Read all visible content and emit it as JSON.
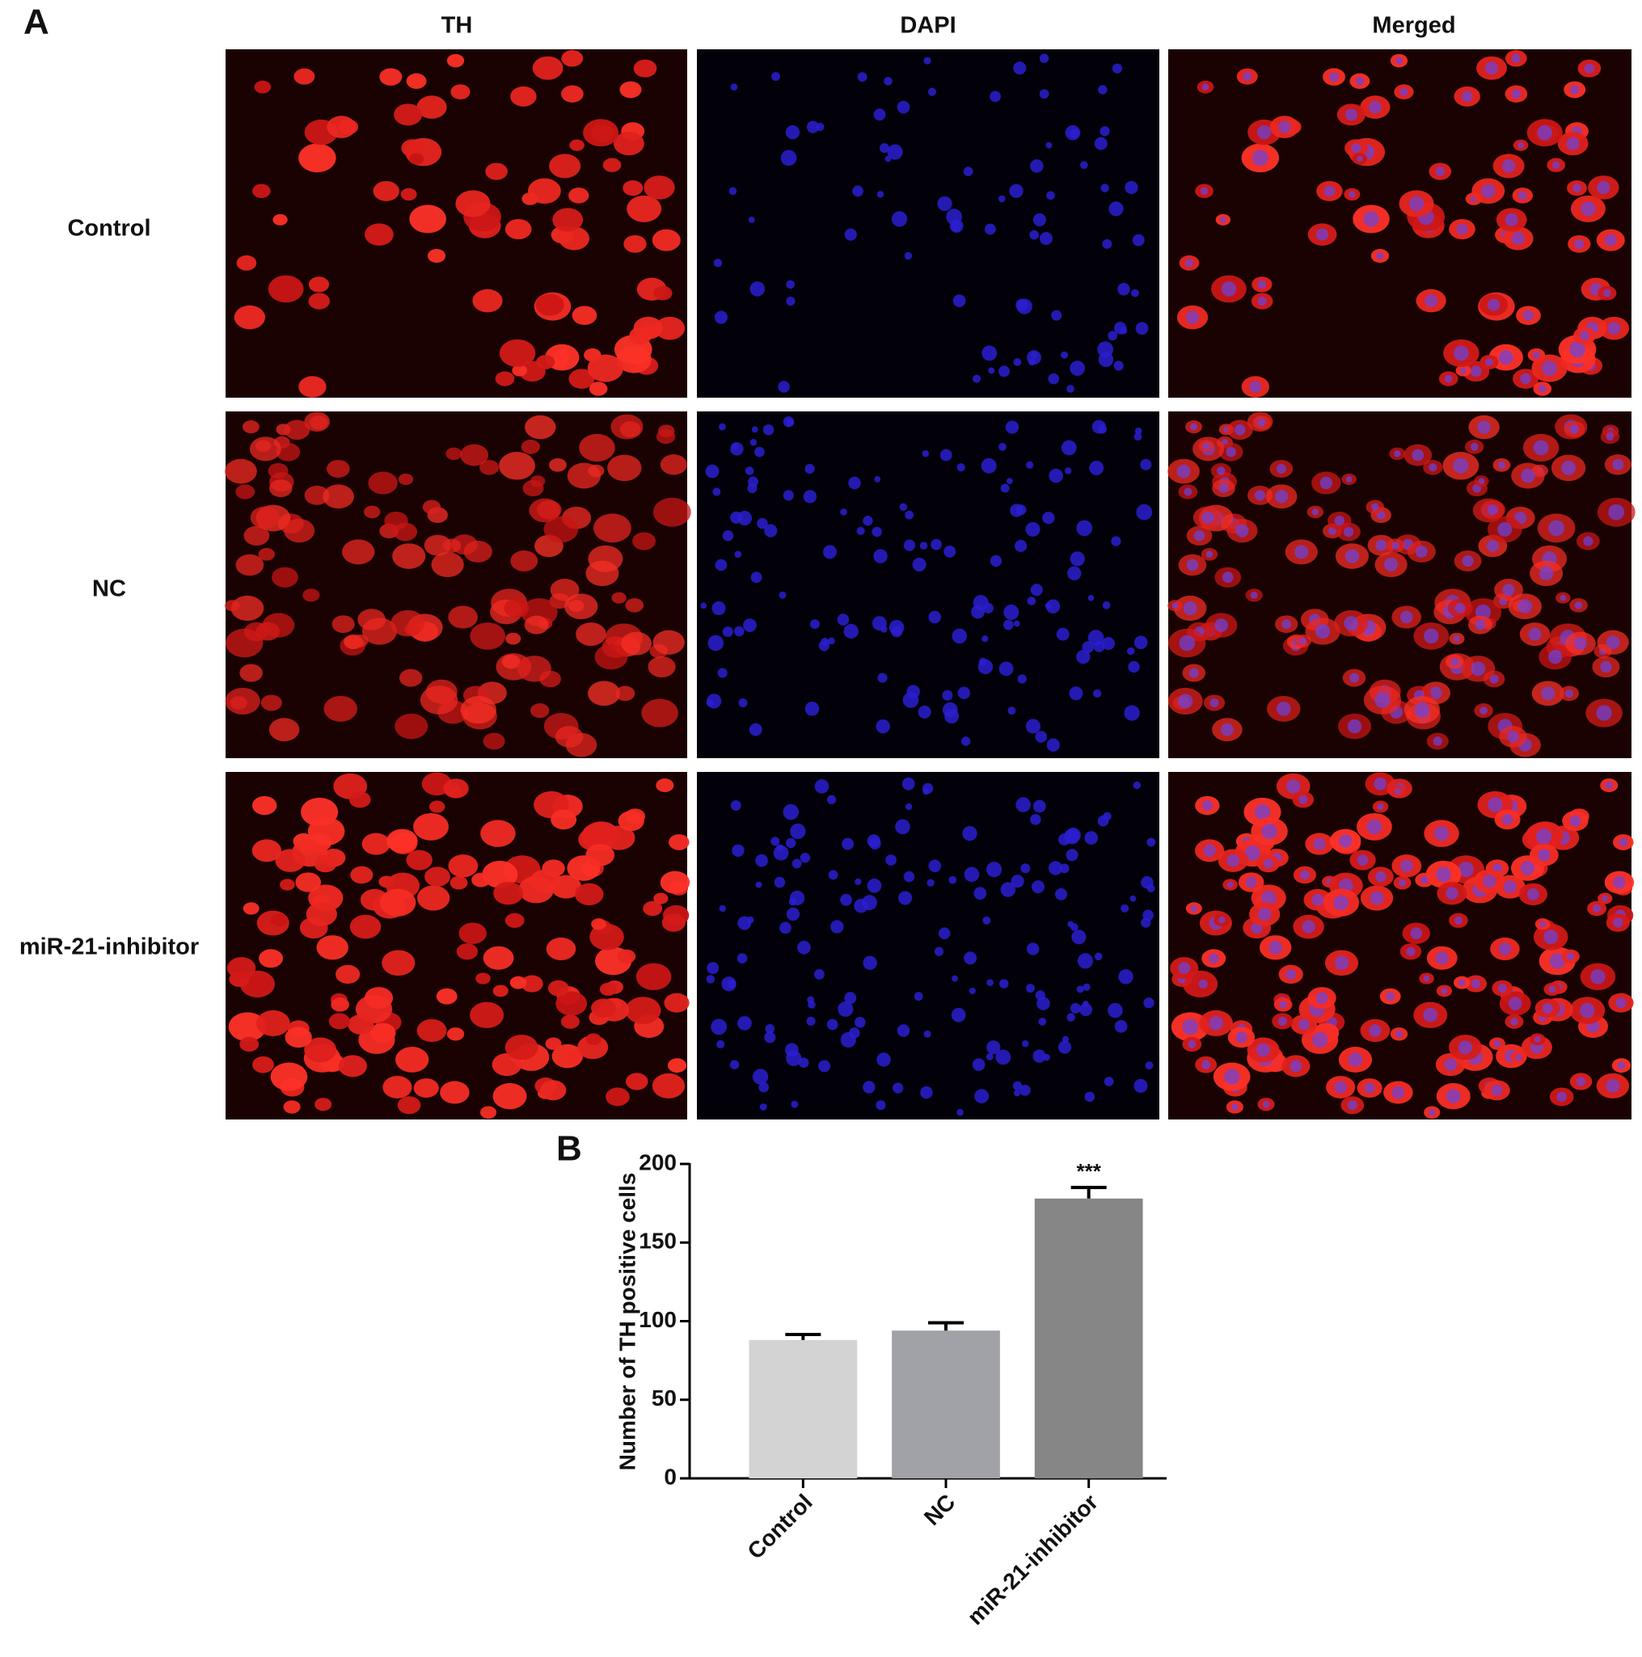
{
  "panel_a": {
    "label": "A",
    "columns": [
      "TH",
      "DAPI",
      "Merged"
    ],
    "rows": [
      "Control",
      "NC",
      "miR-21-inhibitor"
    ]
  },
  "chart_data": {
    "type": "bar",
    "panel_label": "B",
    "y_label": "Number of TH positive cells",
    "categories": [
      "Control",
      "NC",
      "miR-21-inhibitor"
    ],
    "values": [
      88,
      94,
      178
    ],
    "errors": [
      3.5,
      5,
      7
    ],
    "colors": [
      "#d3d3d3",
      "#a1a1a8",
      "#868686"
    ],
    "annotations": [
      null,
      null,
      "***"
    ],
    "ylim": [
      0,
      200
    ],
    "yticks": [
      0,
      50,
      100,
      150,
      200
    ]
  }
}
